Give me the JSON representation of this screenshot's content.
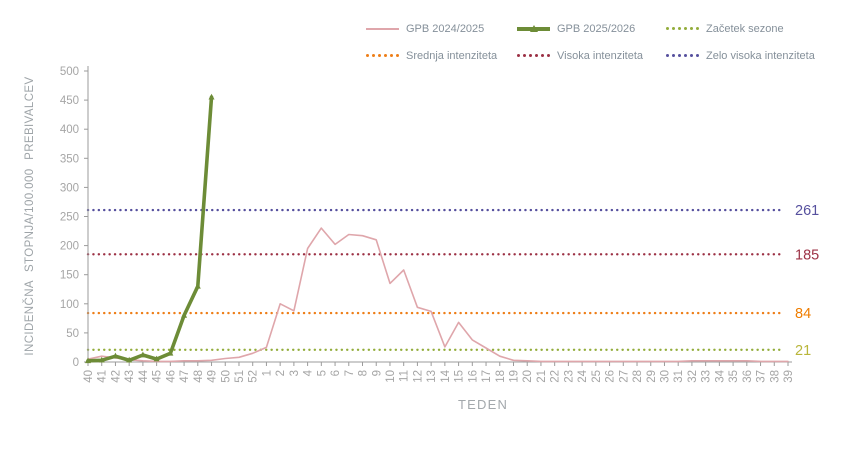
{
  "axis": {
    "y_title": "INCIDENČNA STOPNJA/100.000 PREBIVALCEV",
    "x_title": "TEDEN"
  },
  "legend": {
    "position": "top",
    "items": [
      {
        "label": "GPB 2024/2025",
        "swatch": "line",
        "color": "#dfa6ab"
      },
      {
        "label": "GPB 2025/2026",
        "swatch": "line-thick-marker",
        "color": "#6d8c37"
      },
      {
        "label": "Začetek sezone",
        "swatch": "dotted",
        "color": "#93ad3b"
      },
      {
        "label": "Srednja intenziteta",
        "swatch": "dotted",
        "color": "#ee7e18"
      },
      {
        "label": "Visoka intenziteta",
        "swatch": "dotted",
        "color": "#9c3145"
      },
      {
        "label": "Zelo visoka intenziteta",
        "swatch": "dotted",
        "color": "#56509e"
      }
    ]
  },
  "chart_data": {
    "type": "line",
    "title": "",
    "xlabel": "TEDEN",
    "ylabel": "INCIDENČNA STOPNJA/100.000 PREBIVALCEV",
    "ylim": [
      0,
      500
    ],
    "ytick_step": 50,
    "grid": false,
    "legend_position": "top",
    "categories": [
      "40",
      "41",
      "42",
      "43",
      "44",
      "45",
      "46",
      "47",
      "48",
      "49",
      "50",
      "51",
      "52",
      "1",
      "2",
      "3",
      "4",
      "5",
      "6",
      "7",
      "8",
      "9",
      "10",
      "11",
      "12",
      "13",
      "14",
      "15",
      "16",
      "17",
      "18",
      "19",
      "20",
      "21",
      "22",
      "23",
      "24",
      "25",
      "26",
      "27",
      "28",
      "29",
      "30",
      "31",
      "32",
      "33",
      "34",
      "35",
      "36",
      "37",
      "38",
      "39"
    ],
    "series": [
      {
        "name": "GPB 2024/2025",
        "color": "#dfa6ab",
        "width": 1.6,
        "marker": false,
        "values": [
          5,
          10,
          7,
          4,
          2,
          1,
          1,
          2,
          2,
          3,
          6,
          8,
          15,
          25,
          100,
          88,
          195,
          230,
          202,
          219,
          217,
          210,
          135,
          158,
          94,
          87,
          26,
          68,
          38,
          24,
          10,
          3,
          2,
          1,
          1,
          1,
          1,
          1,
          1,
          1,
          1,
          1,
          1,
          1,
          2,
          2,
          2,
          2,
          2,
          1,
          1,
          1
        ]
      },
      {
        "name": "GPB 2025/2026",
        "color": "#6d8c37",
        "width": 3.6,
        "marker": true,
        "values": [
          2,
          3,
          10,
          3,
          12,
          5,
          15,
          80,
          130,
          455
        ]
      }
    ],
    "thresholds": [
      {
        "name": "Začetek sezone",
        "value": 21,
        "color": "#93ad3b",
        "label_color": "#b9b63b"
      },
      {
        "name": "Srednja intenziteta",
        "value": 84,
        "color": "#ee7e18",
        "label_color": "#ef7d00"
      },
      {
        "name": "Visoka intenziteta",
        "value": 185,
        "color": "#9c3145",
        "label_color": "#9c3145"
      },
      {
        "name": "Zelo visoka intenziteta",
        "value": 261,
        "color": "#56509e",
        "label_color": "#56509e"
      }
    ],
    "colors": {
      "axis": "#9b9b9b",
      "tick_text": "#a5a5a5",
      "legend_text": "#85909a",
      "background": "#ffffff"
    }
  }
}
